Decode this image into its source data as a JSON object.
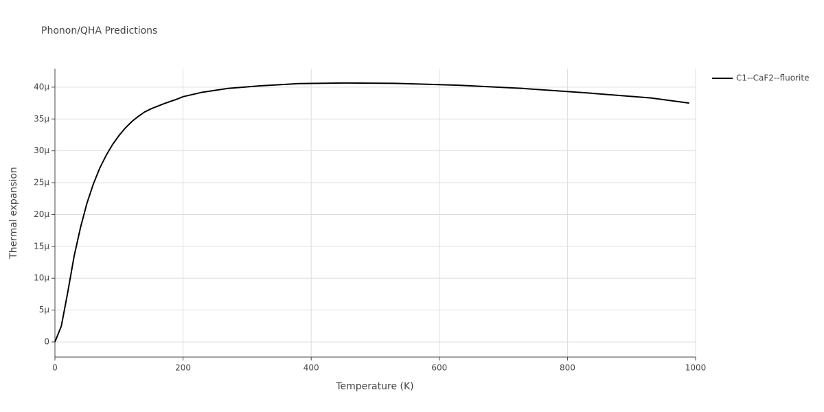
{
  "chart_data": {
    "type": "line",
    "title": "Phonon/QHA Predictions",
    "x_label": "Temperature (K)",
    "y_label": "Thermal expansion",
    "x": [
      0,
      10,
      20,
      30,
      40,
      50,
      60,
      70,
      80,
      90,
      100,
      110,
      120,
      130,
      140,
      150,
      170,
      190,
      200,
      230,
      270,
      320,
      380,
      450,
      530,
      630,
      730,
      830,
      930,
      990
    ],
    "series": [
      {
        "name": "C1--CaF2--fluorite",
        "color": "#000000",
        "values": [
          0,
          2.5e-06,
          7.8e-06,
          1.35e-05,
          1.8e-05,
          2.18e-05,
          2.48e-05,
          2.73e-05,
          2.93e-05,
          3.1e-05,
          3.24e-05,
          3.36e-05,
          3.46e-05,
          3.54e-05,
          3.61e-05,
          3.66e-05,
          3.74e-05,
          3.81e-05,
          3.85e-05,
          3.92e-05,
          3.98e-05,
          4.02e-05,
          4.055e-05,
          4.065e-05,
          4.06e-05,
          4.03e-05,
          3.98e-05,
          3.91e-05,
          3.83e-05,
          3.75e-05
        ]
      }
    ],
    "xlim": [
      0,
      1000
    ],
    "xticks": [
      0,
      200,
      400,
      600,
      800,
      1000
    ],
    "ylim": [
      -2.37e-06,
      4.29e-05
    ],
    "yticks": [
      0,
      {
        "value": 5e-06,
        "label": "5μ"
      },
      {
        "value": 1e-05,
        "label": "10μ"
      },
      {
        "value": 1.5e-05,
        "label": "15μ"
      },
      {
        "value": 2e-05,
        "label": "20μ"
      },
      {
        "value": 2.5e-05,
        "label": "25μ"
      },
      {
        "value": 3e-05,
        "label": "30μ"
      },
      {
        "value": 3.5e-05,
        "label": "35μ"
      },
      {
        "value": 4e-05,
        "label": "40μ"
      }
    ],
    "grid": true,
    "legend": "right"
  }
}
